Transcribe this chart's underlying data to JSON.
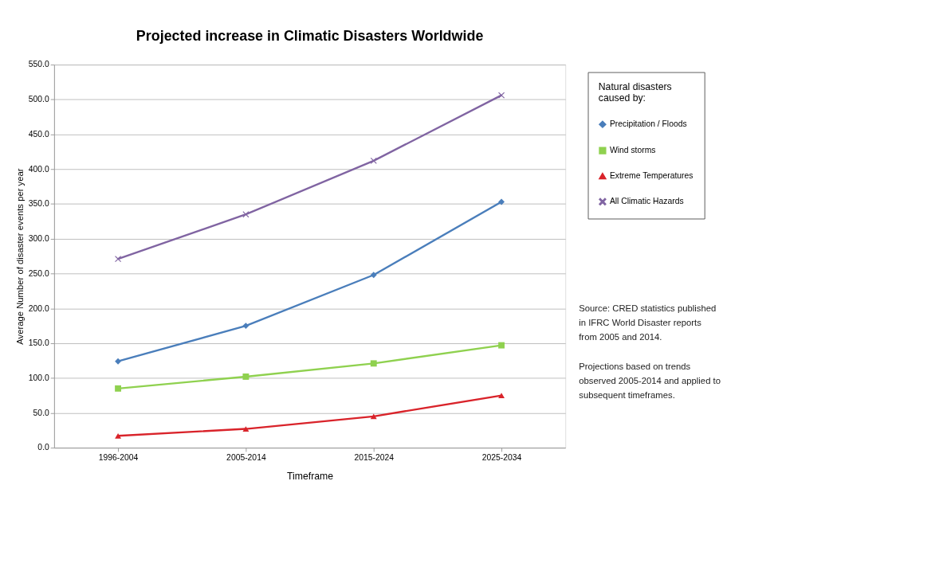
{
  "chart_data": {
    "type": "line",
    "title": "Projected increase in Climatic Disasters Worldwide",
    "xlabel": "Timeframe",
    "ylabel": "Average Number of disaster events per year",
    "legend_title": "Natural disasters\ncaused by:",
    "categories": [
      "1996-2004",
      "2005-2014",
      "2015-2024",
      "2025-2034"
    ],
    "series": [
      {
        "name": "Precipitation / Floods",
        "color": "#4a7ebb",
        "marker": "diamond",
        "values": [
          124,
          175,
          248,
          353
        ]
      },
      {
        "name": "Wind storms",
        "color": "#8fd14f",
        "marker": "square",
        "values": [
          85,
          102,
          121,
          147
        ]
      },
      {
        "name": "Extreme Temperatures",
        "color": "#d9232a",
        "marker": "triangle",
        "values": [
          17,
          27,
          45,
          75
        ]
      },
      {
        "name": "All Climatic Hazards",
        "color": "#8064a2",
        "marker": "cross",
        "values": [
          271,
          335,
          412,
          506
        ]
      }
    ],
    "ylim": [
      0,
      550
    ],
    "yticks": [
      {
        "value": 0,
        "label": "0.0"
      },
      {
        "value": 50,
        "label": "50.0"
      },
      {
        "value": 100,
        "label": "100.0"
      },
      {
        "value": 150,
        "label": "150.0"
      },
      {
        "value": 200,
        "label": "200.0"
      },
      {
        "value": 250,
        "label": "250.0"
      },
      {
        "value": 300,
        "label": "300.0"
      },
      {
        "value": 350,
        "label": "350.0"
      },
      {
        "value": 400,
        "label": "400.0"
      },
      {
        "value": 450,
        "label": "450.0"
      },
      {
        "value": 500,
        "label": "500.0"
      },
      {
        "value": 550,
        "label": "550.0"
      }
    ],
    "grid": "y",
    "legend": "right",
    "line_style": "solid",
    "annotations": [
      "Source: CRED statistics published in IFRC World Disaster reports from 2005 and 2014.",
      "Projections based on trends observed 2005-2014 and applied to subsequent timeframes."
    ]
  }
}
